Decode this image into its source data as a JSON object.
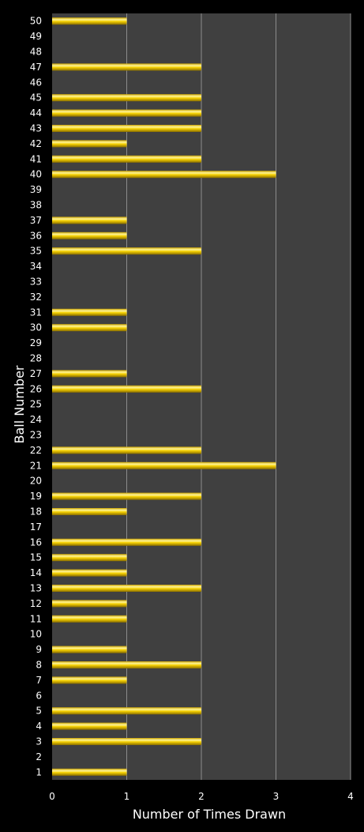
{
  "chart_data": {
    "type": "bar",
    "orientation": "horizontal",
    "title": "",
    "xlabel": "Number of Times Drawn",
    "ylabel": "Ball Number",
    "xlim": [
      0,
      4
    ],
    "xticks": [
      0,
      1,
      2,
      3,
      4
    ],
    "grid": "vertical",
    "legend": "none",
    "colors": {
      "background": "#000000",
      "plot_area": "#404040",
      "bar": "#f5d000",
      "bar_highlight": "#fff59a",
      "bar_shadow": "#8a6e00",
      "grid": "#8c8c8c",
      "text": "#ffffff"
    },
    "categories": [
      "1",
      "2",
      "3",
      "4",
      "5",
      "6",
      "7",
      "8",
      "9",
      "10",
      "11",
      "12",
      "13",
      "14",
      "15",
      "16",
      "17",
      "18",
      "19",
      "20",
      "21",
      "22",
      "23",
      "24",
      "25",
      "26",
      "27",
      "28",
      "29",
      "30",
      "31",
      "32",
      "33",
      "34",
      "35",
      "36",
      "37",
      "38",
      "39",
      "40",
      "41",
      "42",
      "43",
      "44",
      "45",
      "46",
      "47",
      "48",
      "49",
      "50"
    ],
    "values": [
      1,
      0,
      2,
      1,
      2,
      0,
      1,
      2,
      1,
      0,
      1,
      1,
      2,
      1,
      1,
      2,
      0,
      1,
      2,
      0,
      3,
      2,
      0,
      0,
      0,
      2,
      1,
      0,
      0,
      1,
      1,
      0,
      0,
      0,
      2,
      1,
      1,
      0,
      0,
      3,
      2,
      1,
      2,
      2,
      2,
      0,
      2,
      0,
      0,
      1
    ]
  }
}
